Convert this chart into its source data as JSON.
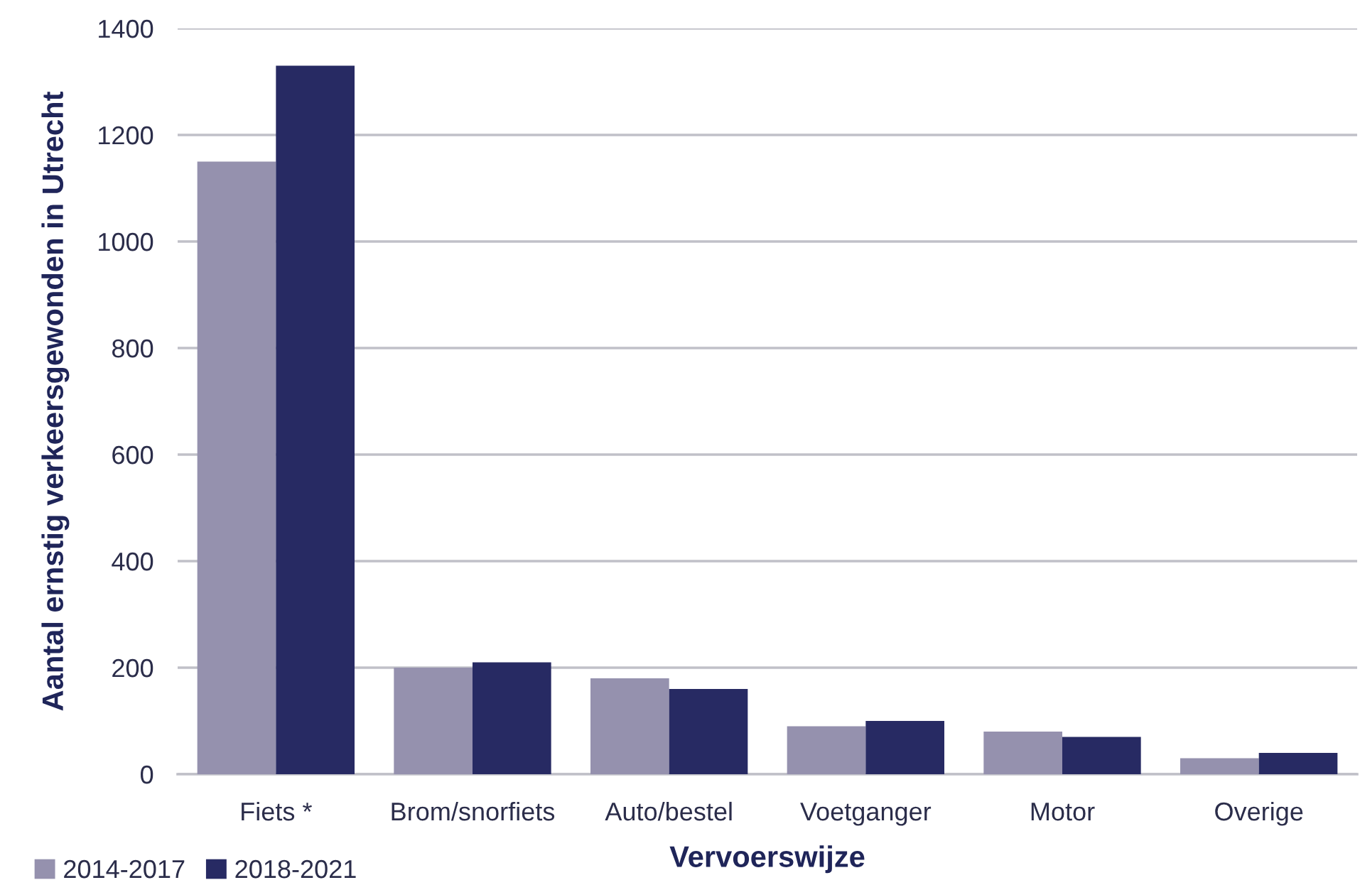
{
  "chart_data": {
    "type": "bar",
    "xlabel": "Vervoerswijze",
    "ylabel": "Aantal ernstig verkeersgewonden in Utrecht",
    "categories": [
      "Fiets *",
      "Brom/snorfiets",
      "Auto/bestel",
      "Voetganger",
      "Motor",
      "Overige"
    ],
    "series": [
      {
        "name": "2014-2017",
        "color": "#9591ae",
        "values": [
          1150,
          200,
          180,
          90,
          80,
          30
        ]
      },
      {
        "name": "2018-2021",
        "color": "#272a63",
        "values": [
          1330,
          210,
          160,
          100,
          70,
          40
        ]
      }
    ],
    "ylim": [
      0,
      1400
    ],
    "yticks": [
      0,
      200,
      400,
      600,
      800,
      1000,
      1200,
      1400
    ],
    "grid": "y",
    "legend": "bottom left"
  }
}
